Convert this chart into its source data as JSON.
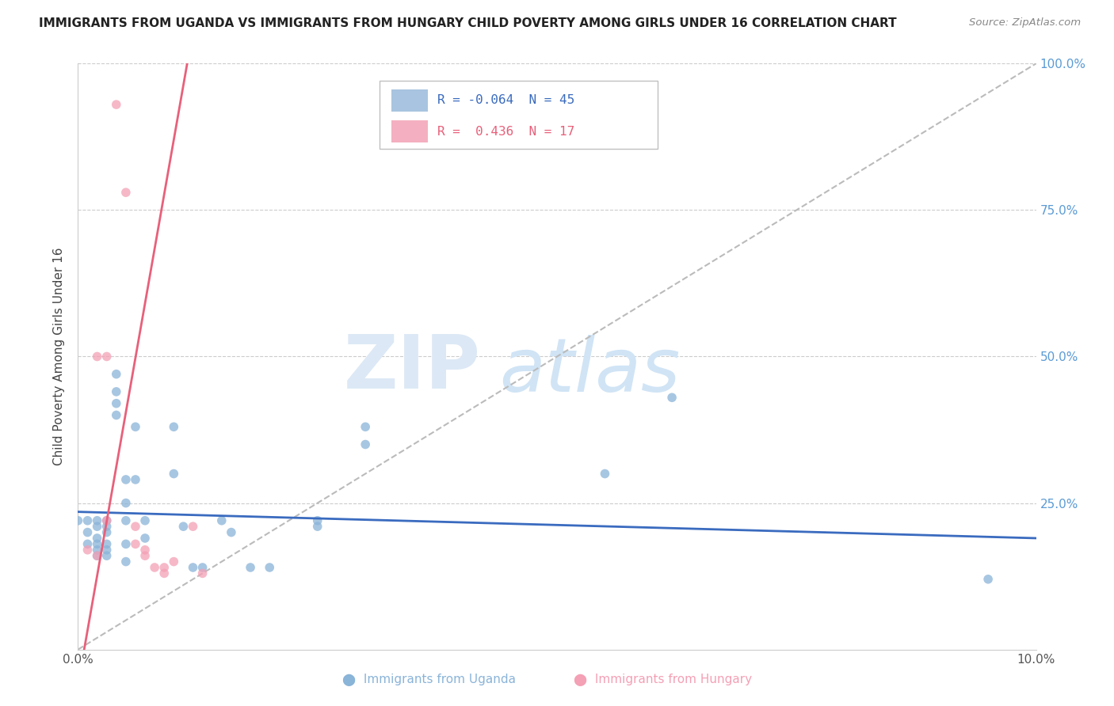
{
  "title": "IMMIGRANTS FROM UGANDA VS IMMIGRANTS FROM HUNGARY CHILD POVERTY AMONG GIRLS UNDER 16 CORRELATION CHART",
  "source": "Source: ZipAtlas.com",
  "ylabel": "Child Poverty Among Girls Under 16",
  "xlim": [
    0.0,
    0.1
  ],
  "ylim": [
    0.0,
    1.0
  ],
  "uganda_points": [
    [
      0.0,
      0.22
    ],
    [
      0.001,
      0.22
    ],
    [
      0.001,
      0.2
    ],
    [
      0.001,
      0.18
    ],
    [
      0.002,
      0.22
    ],
    [
      0.002,
      0.21
    ],
    [
      0.002,
      0.19
    ],
    [
      0.002,
      0.18
    ],
    [
      0.002,
      0.17
    ],
    [
      0.002,
      0.16
    ],
    [
      0.003,
      0.22
    ],
    [
      0.003,
      0.21
    ],
    [
      0.003,
      0.2
    ],
    [
      0.003,
      0.18
    ],
    [
      0.003,
      0.17
    ],
    [
      0.003,
      0.16
    ],
    [
      0.004,
      0.47
    ],
    [
      0.004,
      0.44
    ],
    [
      0.004,
      0.42
    ],
    [
      0.004,
      0.4
    ],
    [
      0.005,
      0.29
    ],
    [
      0.005,
      0.25
    ],
    [
      0.005,
      0.22
    ],
    [
      0.005,
      0.18
    ],
    [
      0.005,
      0.15
    ],
    [
      0.006,
      0.38
    ],
    [
      0.006,
      0.29
    ],
    [
      0.007,
      0.22
    ],
    [
      0.007,
      0.19
    ],
    [
      0.01,
      0.38
    ],
    [
      0.01,
      0.3
    ],
    [
      0.011,
      0.21
    ],
    [
      0.012,
      0.14
    ],
    [
      0.013,
      0.14
    ],
    [
      0.015,
      0.22
    ],
    [
      0.016,
      0.2
    ],
    [
      0.018,
      0.14
    ],
    [
      0.02,
      0.14
    ],
    [
      0.025,
      0.22
    ],
    [
      0.025,
      0.21
    ],
    [
      0.03,
      0.38
    ],
    [
      0.03,
      0.35
    ],
    [
      0.055,
      0.3
    ],
    [
      0.062,
      0.43
    ],
    [
      0.095,
      0.12
    ]
  ],
  "hungary_points": [
    [
      0.001,
      0.17
    ],
    [
      0.002,
      0.16
    ],
    [
      0.002,
      0.5
    ],
    [
      0.003,
      0.5
    ],
    [
      0.003,
      0.22
    ],
    [
      0.004,
      0.93
    ],
    [
      0.005,
      0.78
    ],
    [
      0.006,
      0.21
    ],
    [
      0.006,
      0.18
    ],
    [
      0.007,
      0.17
    ],
    [
      0.007,
      0.16
    ],
    [
      0.008,
      0.14
    ],
    [
      0.009,
      0.14
    ],
    [
      0.009,
      0.13
    ],
    [
      0.01,
      0.15
    ],
    [
      0.012,
      0.21
    ],
    [
      0.013,
      0.13
    ]
  ],
  "uganda_color": "#8ab4d8",
  "hungary_color": "#f4a0b5",
  "uganda_line_color": "#3a6bbf",
  "hungary_line_color": "#e8607a",
  "uganda_R": -0.064,
  "uganda_N": 45,
  "hungary_R": 0.436,
  "hungary_N": 17,
  "diag_color": "#bbbbbb",
  "dot_size": 70,
  "dot_alpha": 0.75,
  "legend_box_uganda": "#a8c4e0",
  "legend_box_hungary": "#f4b0c0",
  "background_color": "#ffffff"
}
